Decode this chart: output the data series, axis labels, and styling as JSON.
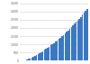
{
  "values": [
    4,
    12,
    28,
    52,
    80,
    115,
    156,
    200,
    248,
    300,
    355,
    412,
    470,
    530,
    592,
    656,
    722,
    790,
    860,
    932,
    1006,
    1082,
    1160,
    1240,
    1322,
    1406,
    1492,
    1580,
    1670,
    1762,
    1856,
    1952,
    2050,
    2150,
    2252,
    2356,
    2462,
    2570,
    2680,
    2792,
    2906,
    3022,
    3140
  ],
  "bar_color": "#3b78c3",
  "background_color": "#ffffff",
  "gridline_color": "#c0c0c0",
  "ylim": [
    0,
    3500
  ],
  "yticks": [
    0,
    500,
    1000,
    1500,
    2000,
    2500,
    3000,
    3500
  ],
  "ytick_labels": [
    "0",
    "500",
    "1,000",
    "1,500",
    "2,000",
    "2,500",
    "3,000",
    "3,500"
  ]
}
